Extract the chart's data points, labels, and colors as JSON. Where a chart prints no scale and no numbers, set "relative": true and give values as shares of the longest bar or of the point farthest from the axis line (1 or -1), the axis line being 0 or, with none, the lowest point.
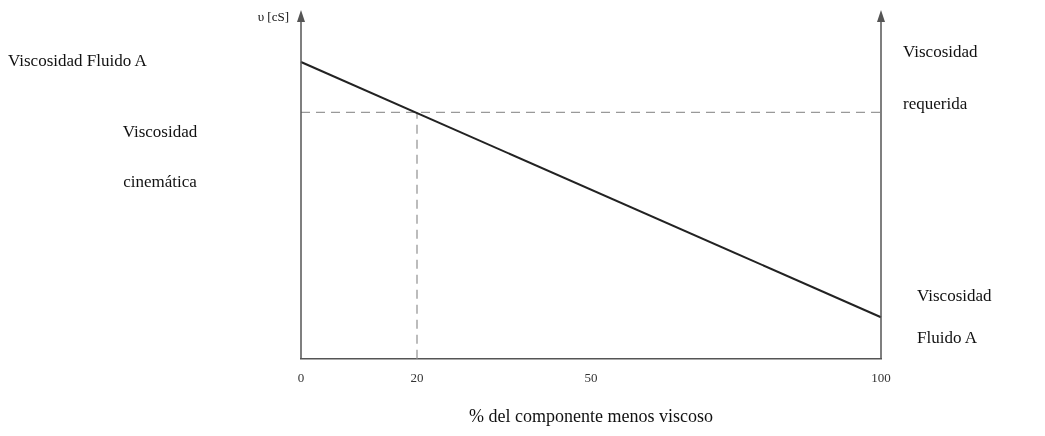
{
  "chart_data": {
    "type": "line",
    "relative": true,
    "xlabel": "% del componente menos viscoso",
    "ylabel": "υ [cS]",
    "x": [
      0,
      100
    ],
    "xlim": [
      0,
      100
    ],
    "xticks": [
      0,
      20,
      50,
      100
    ],
    "series": [
      {
        "color": "#222222",
        "values": [
          1,
          0.14
        ]
      }
    ],
    "ref_lines": [
      {
        "axis": "y",
        "value": 0.83,
        "label": "Viscosidad requerida",
        "color": "#999999",
        "line_style": "dashed"
      },
      {
        "axis": "x",
        "value": 20,
        "color": "#999999",
        "line_style": "dashed"
      }
    ],
    "annotations": [
      "Viscosidad Fluido A",
      "Viscosidad Fluido A",
      "Viscosidad cinemática"
    ],
    "legend": false,
    "marker": "none",
    "line_style": "solid"
  }
}
